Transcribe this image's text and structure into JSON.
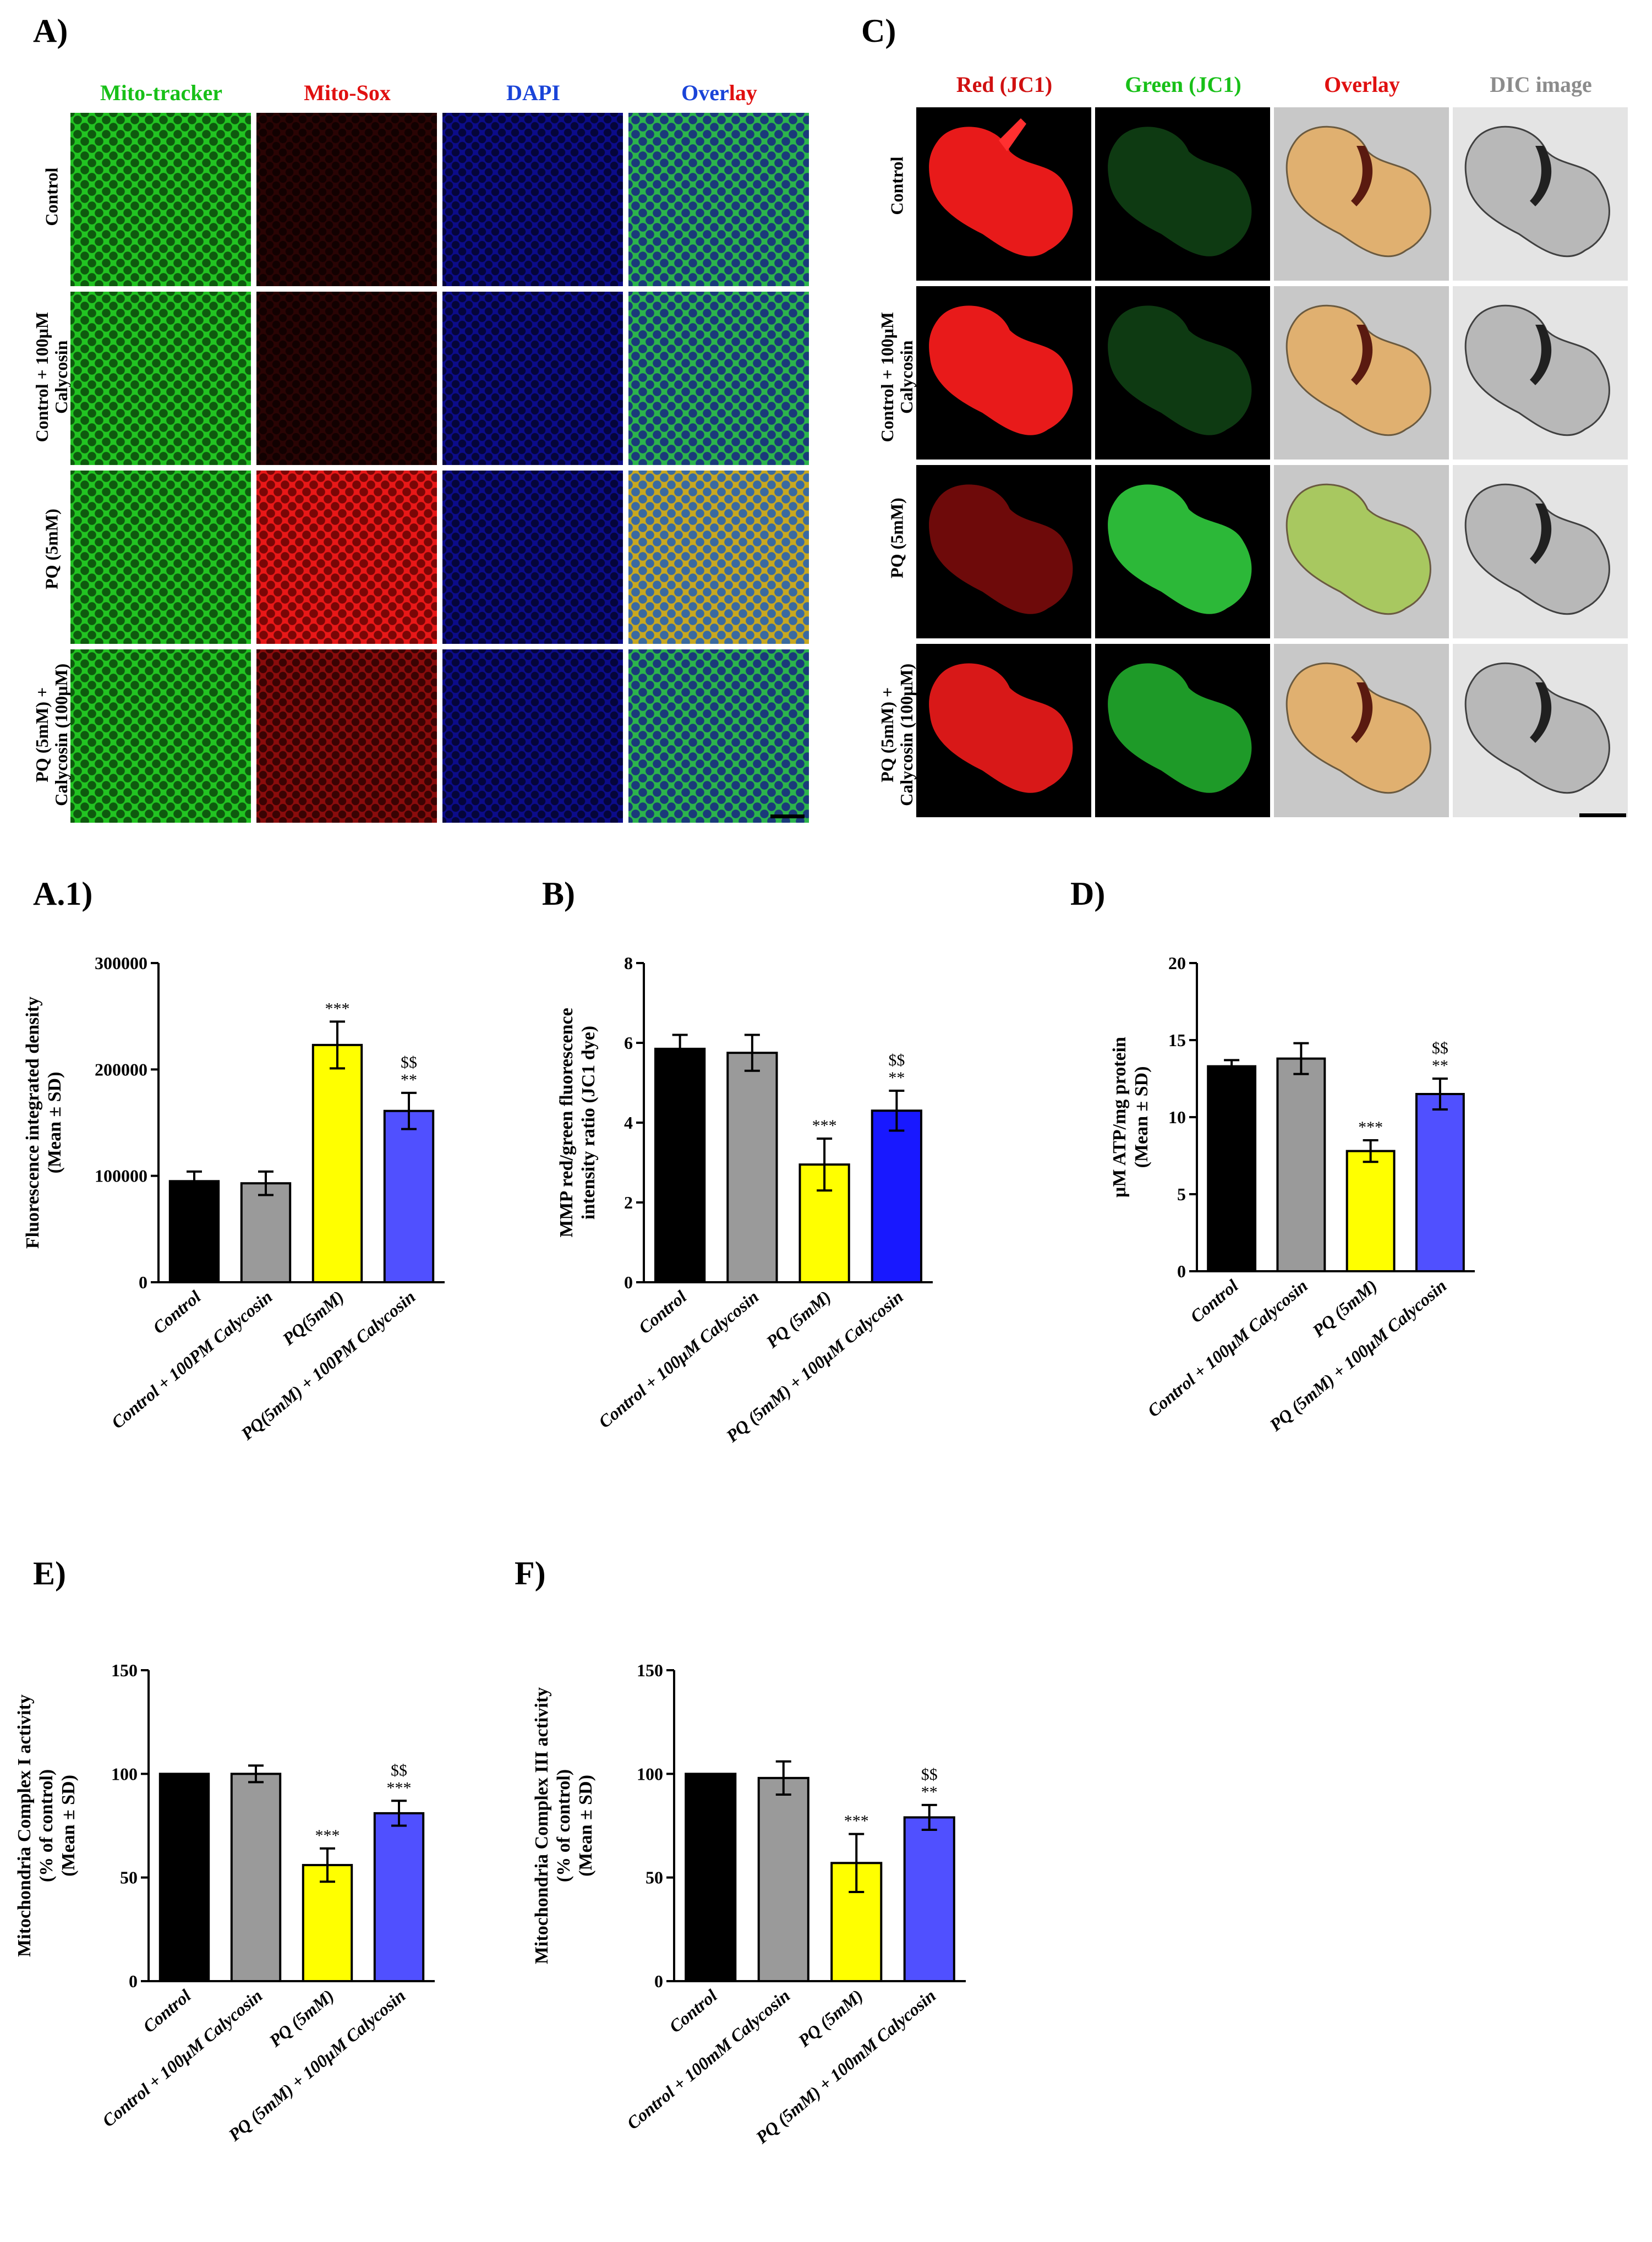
{
  "panels": {
    "A": "A)",
    "A1": "A.1)",
    "B": "B)",
    "C": "C)",
    "D": "D)",
    "E": "E)",
    "F": "F)"
  },
  "panelA": {
    "columns": [
      {
        "label": "Mito-tracker",
        "color": "#18c018"
      },
      {
        "label": "Mito-Sox",
        "color": "#e01010"
      },
      {
        "label": "DAPI",
        "color": "#1a44d8"
      }
    ],
    "overlay": {
      "part1": "Over",
      "part1_color": "#1a44d8",
      "part2": "lay",
      "part2_color": "#e01010"
    },
    "rows": [
      "Control",
      "Control + 100μM\nCalycosin",
      "PQ (5mM)",
      "PQ (5mM) +\nCalycosin (100μM)"
    ]
  },
  "panelC": {
    "columns": [
      {
        "label": "Red (JC1)",
        "color": "#d01010"
      },
      {
        "label": "Green (JC1)",
        "color": "#18c018"
      },
      {
        "label": "Overlay",
        "color": "#e01010"
      },
      {
        "label": "DIC image",
        "color": "#8c8c8c"
      }
    ],
    "rows": [
      "Control",
      "Control + 100μM\nCalycosin",
      "PQ (5mM)",
      "PQ (5mM) +\nCalycosin (100μM)"
    ]
  },
  "chart_data": [
    {
      "id": "A1",
      "type": "bar",
      "ylabel": "Fluorescence integrated density\n(Mean ± SD)",
      "categories": [
        "Control",
        "Control + 100PM Calycosin",
        "PQ(5mM)",
        "PQ(5mM) + 100PM Calycosin"
      ],
      "values": [
        95000,
        93000,
        223000,
        161000
      ],
      "errors": [
        9000,
        11000,
        22000,
        17000
      ],
      "sig": [
        "",
        "",
        "***",
        "**"
      ],
      "sig2": [
        "",
        "",
        "",
        "$$"
      ],
      "ylim": [
        0,
        300000
      ],
      "yticks": [
        "0",
        "100000",
        "200000",
        "300000"
      ],
      "colors": [
        "#000000",
        "#9a9a9a",
        "#ffff00",
        "#5050ff"
      ]
    },
    {
      "id": "B",
      "type": "bar",
      "ylabel": "MMP red/green fluorescence\nintensity ratio (JC1 dye)",
      "categories": [
        "Control",
        "Control + 100μM Calycosin",
        "PQ (5mM)",
        "PQ (5mM) + 100μM Calycosin"
      ],
      "values": [
        5.85,
        5.75,
        2.95,
        4.3
      ],
      "errors": [
        0.35,
        0.45,
        0.65,
        0.5
      ],
      "sig": [
        "",
        "",
        "***",
        "**"
      ],
      "sig2": [
        "",
        "",
        "",
        "$$"
      ],
      "ylim": [
        0,
        8
      ],
      "yticks": [
        "0",
        "2",
        "4",
        "6",
        "8"
      ],
      "colors": [
        "#000000",
        "#9a9a9a",
        "#ffff00",
        "#1818ff"
      ]
    },
    {
      "id": "D",
      "type": "bar",
      "ylabel": "μM ATP/mg protein\n(Mean ± SD)",
      "categories": [
        "Control",
        "Control + 100μM Calycosin",
        "PQ (5mM)",
        "PQ (5mM) + 100μM Calycosin"
      ],
      "values": [
        13.3,
        13.8,
        7.8,
        11.5
      ],
      "errors": [
        0.4,
        1.0,
        0.7,
        1.0
      ],
      "sig": [
        "",
        "",
        "***",
        "**"
      ],
      "sig2": [
        "",
        "",
        "",
        "$$"
      ],
      "ylim": [
        0,
        20
      ],
      "yticks": [
        "0",
        "5",
        "10",
        "15",
        "20"
      ],
      "colors": [
        "#000000",
        "#9a9a9a",
        "#ffff00",
        "#5050ff"
      ]
    },
    {
      "id": "E",
      "type": "bar",
      "ylabel": "Mitochondria Complex I activity\n(% of control)\n(Mean ± SD)",
      "categories": [
        "Control",
        "Control + 100μM Calycosin",
        "PQ (5mM)",
        "PQ (5mM) + 100μM Calycosin"
      ],
      "values": [
        100,
        100,
        56,
        81
      ],
      "errors": [
        0,
        4,
        8,
        6
      ],
      "sig": [
        "",
        "",
        "***",
        "***"
      ],
      "sig2": [
        "",
        "",
        "",
        "$$"
      ],
      "ylim": [
        0,
        150
      ],
      "yticks": [
        "0",
        "50",
        "100",
        "150"
      ],
      "colors": [
        "#000000",
        "#9a9a9a",
        "#ffff00",
        "#5050ff"
      ]
    },
    {
      "id": "F",
      "type": "bar",
      "ylabel": "Mitochondria Complex III  activity\n(% of control)\n(Mean ± SD)",
      "categories": [
        "Control",
        "Control + 100mM Calycosin",
        "PQ (5mM)",
        "PQ (5mM) + 100mM Calycosin"
      ],
      "values": [
        100,
        98,
        57,
        79
      ],
      "errors": [
        0,
        8,
        14,
        6
      ],
      "sig": [
        "",
        "",
        "***",
        "**"
      ],
      "sig2": [
        "",
        "",
        "",
        "$$"
      ],
      "ylim": [
        0,
        150
      ],
      "yticks": [
        "0",
        "50",
        "100",
        "150"
      ],
      "colors": [
        "#000000",
        "#9a9a9a",
        "#ffff00",
        "#5050ff"
      ]
    }
  ]
}
